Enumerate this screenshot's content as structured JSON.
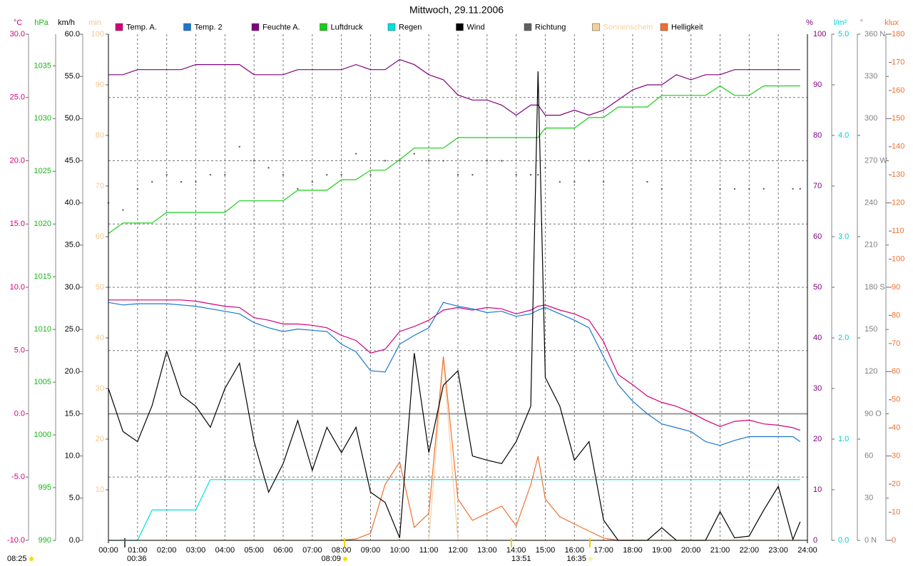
{
  "chart_data": {
    "type": "line",
    "title": "Mittwoch, 29.11.2006",
    "x": [
      0,
      0.5,
      1,
      1.5,
      2,
      2.5,
      3,
      3.5,
      4,
      4.5,
      5,
      5.5,
      6,
      6.5,
      7,
      7.5,
      8,
      8.5,
      9,
      9.5,
      10,
      10.5,
      11,
      11.5,
      12,
      12.5,
      13,
      13.5,
      14,
      14.5,
      14.75,
      15,
      15.5,
      16,
      16.5,
      17,
      17.5,
      18,
      18.5,
      19,
      19.5,
      20,
      20.5,
      21,
      21.5,
      22,
      22.5,
      23,
      23.5,
      23.75
    ],
    "xlim": [
      0,
      24
    ],
    "xticks": [
      {
        "value": 0,
        "label": "00:00"
      },
      {
        "value": 1,
        "label": "01:00"
      },
      {
        "value": 2,
        "label": "02:00"
      },
      {
        "value": 3,
        "label": "03:00"
      },
      {
        "value": 4,
        "label": "04:00"
      },
      {
        "value": 5,
        "label": "05:00"
      },
      {
        "value": 6,
        "label": "06:00"
      },
      {
        "value": 7,
        "label": "07:00"
      },
      {
        "value": 8,
        "label": "08:00"
      },
      {
        "value": 9,
        "label": "09:00"
      },
      {
        "value": 10,
        "label": "10:00"
      },
      {
        "value": 11,
        "label": "11:00"
      },
      {
        "value": 12,
        "label": "12:00"
      },
      {
        "value": 13,
        "label": "13:00"
      },
      {
        "value": 14,
        "label": "14:00"
      },
      {
        "value": 15,
        "label": "15:00"
      },
      {
        "value": 16,
        "label": "16:00"
      },
      {
        "value": 17,
        "label": "17:00"
      },
      {
        "value": 18,
        "label": "18:00"
      },
      {
        "value": 19,
        "label": "19:00"
      },
      {
        "value": 20,
        "label": "20:00"
      },
      {
        "value": 21,
        "label": "21:00"
      },
      {
        "value": 22,
        "label": "22:00"
      },
      {
        "value": 23,
        "label": "23:00"
      },
      {
        "value": 24,
        "label": "24:00"
      }
    ],
    "grid": true,
    "axes": [
      {
        "unit": "°C",
        "color": "#d4007a",
        "side": "left",
        "lim": [
          -10,
          30
        ],
        "grid": true,
        "ticks": [
          {
            "value": -10,
            "label": "-10.0"
          },
          {
            "value": -5,
            "label": "-5.0"
          },
          {
            "value": 0,
            "label": "0.0"
          },
          {
            "value": 5,
            "label": "5.0"
          },
          {
            "value": 10,
            "label": "10.0"
          },
          {
            "value": 15,
            "label": "15.0"
          },
          {
            "value": 20,
            "label": "20.0"
          },
          {
            "value": 25,
            "label": "25.0"
          },
          {
            "value": 30,
            "label": "30.0"
          }
        ]
      },
      {
        "unit": "hPa",
        "color": "#16b816",
        "side": "left",
        "lim": [
          990,
          1038
        ],
        "ticks": [
          990,
          995,
          1000,
          1005,
          1010,
          1015,
          1020,
          1025,
          1030,
          1035
        ]
      },
      {
        "unit": "km/h",
        "color": "#000000",
        "side": "left",
        "lim": [
          0,
          60
        ],
        "ticks": [
          {
            "value": 0,
            "label": "0.0"
          },
          {
            "value": 5,
            "label": "5.0"
          },
          {
            "value": 10,
            "label": "10.0"
          },
          {
            "value": 15,
            "label": "15.0"
          },
          {
            "value": 20,
            "label": "20.0"
          },
          {
            "value": 25,
            "label": "25.0"
          },
          {
            "value": 30,
            "label": "30.0"
          },
          {
            "value": 35,
            "label": "35.0"
          },
          {
            "value": 40,
            "label": "40.0"
          },
          {
            "value": 45,
            "label": "45.0"
          },
          {
            "value": 50,
            "label": "50.0"
          },
          {
            "value": 55,
            "label": "55.0"
          },
          {
            "value": 60,
            "label": "60.0"
          }
        ]
      },
      {
        "unit": "min",
        "color": "#f5c88c",
        "side": "left",
        "lim": [
          0,
          100
        ],
        "ticks": [
          10,
          20,
          30,
          40,
          50,
          60,
          70,
          80,
          90,
          100
        ]
      },
      {
        "unit": "%",
        "color": "#800080",
        "side": "right",
        "lim": [
          0,
          100
        ],
        "ticks": [
          0,
          10,
          20,
          30,
          40,
          50,
          60,
          70,
          80,
          90,
          100
        ]
      },
      {
        "unit": "l/m²",
        "color": "#00d0d0",
        "side": "right",
        "lim": [
          0,
          5
        ],
        "ticks": [
          {
            "value": 0,
            "label": "0.0"
          },
          {
            "value": 1,
            "label": "1.0"
          },
          {
            "value": 2,
            "label": "2.0"
          },
          {
            "value": 3,
            "label": "3.0"
          },
          {
            "value": 4,
            "label": "4.0"
          },
          {
            "value": 5,
            "label": "5.0"
          }
        ]
      },
      {
        "unit": "°",
        "color": "#808080",
        "side": "right",
        "lim": [
          0,
          360
        ],
        "ticks": [
          {
            "value": 0,
            "label": "0 N"
          },
          30,
          60,
          {
            "value": 90,
            "label": "90 O"
          },
          120,
          150,
          {
            "value": 180,
            "label": "180 S"
          },
          210,
          240,
          {
            "value": 270,
            "label": "270 W"
          },
          300,
          330,
          {
            "value": 360,
            "label": "360 N"
          }
        ]
      },
      {
        "unit": "klux",
        "color": "#f07030",
        "side": "right",
        "lim": [
          0,
          180
        ],
        "ticks": [
          0,
          10,
          20,
          30,
          40,
          50,
          60,
          70,
          80,
          90,
          100,
          110,
          120,
          130,
          140,
          150,
          160,
          170,
          180
        ]
      }
    ],
    "series": [
      {
        "name": "Temp. A.",
        "color": "#d4007a",
        "axis": 0,
        "values": [
          9.0,
          9.0,
          9.0,
          9.0,
          9.0,
          9.0,
          8.9,
          8.7,
          8.5,
          8.4,
          7.6,
          7.4,
          7.1,
          7.1,
          7.0,
          6.8,
          6.2,
          5.8,
          4.8,
          5.1,
          6.5,
          6.9,
          7.4,
          8.2,
          8.4,
          8.2,
          8.4,
          8.3,
          7.9,
          8.2,
          8.5,
          8.6,
          8.2,
          7.9,
          7.4,
          5.7,
          3.1,
          2.3,
          1.4,
          0.9,
          0.6,
          0.1,
          -0.5,
          -1.0,
          -0.6,
          -0.5,
          -0.8,
          -0.9,
          -1.1,
          -1.3
        ]
      },
      {
        "name": "Temp. 2",
        "color": "#1a78d0",
        "axis": 0,
        "values": [
          8.8,
          8.6,
          8.7,
          8.7,
          8.7,
          8.6,
          8.5,
          8.3,
          8.1,
          7.9,
          7.2,
          6.8,
          6.5,
          6.7,
          6.6,
          6.5,
          5.5,
          4.9,
          3.4,
          3.3,
          5.5,
          6.2,
          6.8,
          8.8,
          8.5,
          8.3,
          8.0,
          8.1,
          7.7,
          7.9,
          8.2,
          8.4,
          7.9,
          7.4,
          6.8,
          4.5,
          2.3,
          1.0,
          0.0,
          -0.8,
          -1.1,
          -1.4,
          -2.2,
          -2.5,
          -2.1,
          -1.8,
          -1.8,
          -1.8,
          -1.8,
          -2.2
        ]
      },
      {
        "name": "Feuchte A.",
        "color": "#800080",
        "axis": 4,
        "values": [
          92,
          92,
          93,
          93,
          93,
          93,
          94,
          94,
          94,
          94,
          92,
          92,
          92,
          93,
          93,
          93,
          93,
          94,
          93,
          93,
          95,
          94,
          92,
          91,
          88,
          87,
          87,
          86,
          84,
          86,
          86,
          84,
          84,
          85,
          84,
          85,
          87,
          89,
          90,
          90,
          92,
          91,
          92,
          92,
          93,
          93,
          93,
          93,
          93,
          93
        ]
      },
      {
        "name": "Luftdruck",
        "color": "#16d016",
        "axis": 1,
        "values": [
          1019.1,
          1020.1,
          1020.1,
          1020.1,
          1021.1,
          1021.1,
          1021.1,
          1021.1,
          1021.1,
          1022.2,
          1022.2,
          1022.2,
          1022.2,
          1023.2,
          1023.2,
          1023.2,
          1024.2,
          1024.2,
          1025.1,
          1025.1,
          1026.1,
          1027.2,
          1027.2,
          1027.2,
          1028.2,
          1028.2,
          1028.2,
          1028.2,
          1028.2,
          1028.2,
          1028.2,
          1029.1,
          1029.1,
          1029.1,
          1030.1,
          1030.1,
          1031.1,
          1031.1,
          1031.1,
          1032.2,
          1032.2,
          1032.2,
          1032.2,
          1033.1,
          1032.2,
          1032.2,
          1033.1,
          1033.1,
          1033.1,
          1033.1
        ]
      },
      {
        "name": "Regen",
        "color": "#00e0e0",
        "axis": 5,
        "values": [
          0,
          0,
          0,
          0.3,
          0.3,
          0.3,
          0.3,
          0.6,
          0.6,
          0.6,
          0.6,
          0.6,
          0.6,
          0.6,
          0.6,
          0.6,
          0.6,
          0.6,
          0.6,
          0.6,
          0.6,
          0.6,
          0.6,
          0.6,
          0.6,
          0.6,
          0.6,
          0.6,
          0.6,
          0.6,
          0.6,
          0.6,
          0.6,
          0.6,
          0.6,
          0.6,
          0.6,
          0.6,
          0.6,
          0.6,
          0.6,
          0.6,
          0.6,
          0.6,
          0.6,
          0.6,
          0.6,
          0.6,
          0.6,
          0.6
        ]
      },
      {
        "name": "Wind",
        "color": "#000000",
        "axis": 2,
        "values": [
          18.0,
          12.9,
          11.7,
          16.0,
          22.4,
          17.2,
          15.9,
          13.4,
          18.0,
          21.0,
          11.7,
          5.7,
          9.1,
          14.2,
          8.3,
          13.4,
          10.4,
          13.4,
          5.7,
          4.5,
          0.3,
          22.2,
          10.4,
          18.4,
          20.1,
          10.0,
          9.5,
          9.1,
          11.7,
          15.9,
          55.6,
          19.3,
          15.9,
          9.5,
          11.7,
          2.4,
          0,
          0,
          0,
          1.5,
          0,
          0,
          0,
          3.4,
          0.3,
          0.5,
          3.6,
          6.4,
          0.1,
          2.2
        ]
      },
      {
        "name": "Richtung",
        "color": "#606060",
        "axis": 6,
        "marker": "dot",
        "values": [
          240,
          235,
          250,
          255,
          260,
          255,
          255,
          260,
          260,
          280,
          270,
          265,
          260,
          250,
          255,
          260,
          260,
          275,
          260,
          270,
          270,
          275,
          270,
          270,
          260,
          260,
          270,
          270,
          260,
          260,
          260,
          265,
          255,
          255,
          270,
          255,
          null,
          null,
          255,
          250,
          null,
          null,
          null,
          250,
          250,
          250,
          250,
          null,
          250,
          250
        ]
      },
      {
        "name": "Sonnenschein",
        "color": "#f8d09a",
        "axis": 3,
        "values": [
          0,
          0,
          0,
          0,
          0,
          0,
          0,
          0,
          0,
          0,
          0,
          0,
          0,
          0,
          0,
          0,
          0,
          0,
          0,
          0,
          0,
          0,
          0,
          36,
          0,
          0,
          0,
          0,
          0,
          0,
          0,
          0,
          0,
          0,
          0,
          0,
          0,
          0,
          0,
          0,
          0,
          0,
          0,
          0,
          0,
          0,
          0,
          0,
          0,
          0
        ]
      },
      {
        "name": "Helligkeit",
        "color": "#f07030",
        "axis": 7,
        "values": [
          null,
          null,
          null,
          null,
          null,
          null,
          null,
          null,
          null,
          null,
          null,
          null,
          null,
          null,
          null,
          null,
          0,
          0.5,
          2.5,
          19.8,
          27.9,
          4.6,
          9.6,
          65.4,
          14.7,
          7.1,
          9.6,
          12.2,
          5.1,
          19.8,
          29.9,
          14.7,
          8.4,
          5.8,
          3.3,
          0.8,
          0,
          0,
          null,
          null,
          null,
          null,
          null,
          null,
          null,
          null,
          null,
          null,
          null,
          null
        ]
      }
    ],
    "annotations": [
      "08:25",
      "00:36",
      "08:09",
      "13:51",
      "16:35"
    ]
  }
}
